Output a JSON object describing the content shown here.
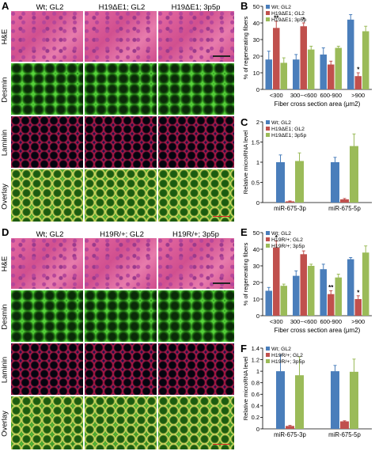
{
  "panels": {
    "A": {
      "label": "A",
      "columns": [
        "Wt; GL2",
        "H19ΔE1; GL2",
        "H19ΔE1; 3p5p"
      ],
      "rows": [
        "H&E",
        "Desmin",
        "Laminin",
        "Overlay"
      ]
    },
    "D": {
      "label": "D",
      "columns": [
        "Wt; GL2",
        "H19R/+; GL2",
        "H19R/+; 3p5p"
      ],
      "rows": [
        "H&E",
        "Desmin",
        "Laminin",
        "Overlay"
      ]
    }
  },
  "colors": {
    "blue": "#4a7ebb",
    "red": "#c0504d",
    "green": "#9bbb59"
  },
  "chart_data": [
    {
      "panel": "B",
      "type": "bar",
      "categories": [
        "<300",
        "300~<600",
        "600-900",
        ">900"
      ],
      "series": [
        {
          "name": "Wt; GL2",
          "values": [
            18,
            18,
            21,
            42
          ],
          "errors": [
            5,
            3,
            4,
            3
          ]
        },
        {
          "name": "H19ΔE1; GL2",
          "values": [
            37,
            38,
            15,
            8
          ],
          "errors": [
            4,
            2,
            2,
            2
          ]
        },
        {
          "name": "H19ΔE1; 3p5p",
          "values": [
            16,
            24,
            25,
            35
          ],
          "errors": [
            3,
            2,
            1,
            3
          ]
        }
      ],
      "annotations": [
        {
          "category": 0,
          "series": 1,
          "text": "**"
        },
        {
          "category": 1,
          "series": 1,
          "text": "*"
        },
        {
          "category": 3,
          "series": 1,
          "text": "*"
        }
      ],
      "ylabel": "% of regenerating fibers",
      "xlabel": "Fiber cross section area (μm2)",
      "ylim": [
        0,
        50
      ],
      "yticks": [
        0,
        10,
        20,
        30,
        40,
        50
      ],
      "legend": "top-left"
    },
    {
      "panel": "C",
      "type": "bar",
      "categories": [
        "miR-675-3p",
        "miR-675-5p"
      ],
      "series": [
        {
          "name": "Wt; GL2",
          "values": [
            1.0,
            1.0
          ],
          "errors": [
            0.18,
            0.12
          ]
        },
        {
          "name": "H19ΔE1; GL2",
          "values": [
            0.03,
            0.08
          ],
          "errors": [
            0.01,
            0.02
          ]
        },
        {
          "name": "H19ΔE1; 3p5p",
          "values": [
            1.03,
            1.4
          ],
          "errors": [
            0.2,
            0.3
          ]
        }
      ],
      "ylabel": "Relative microRNA level",
      "ylim": [
        0,
        2
      ],
      "yticks": [
        0,
        0.5,
        1,
        1.5,
        2
      ],
      "legend": "top-left"
    },
    {
      "panel": "E",
      "type": "bar",
      "categories": [
        "<300",
        "300~<600",
        "600-900",
        ">900"
      ],
      "series": [
        {
          "name": "Wt; GL2",
          "values": [
            15,
            24,
            28,
            34
          ],
          "errors": [
            2,
            3,
            3,
            1
          ]
        },
        {
          "name": "H19R/+; GL2",
          "values": [
            41,
            37,
            13,
            10
          ],
          "errors": [
            4,
            2,
            2,
            2
          ]
        },
        {
          "name": "H19R/+; 3p5p",
          "values": [
            18,
            30,
            23,
            38
          ],
          "errors": [
            1,
            1,
            2,
            4
          ]
        }
      ],
      "annotations": [
        {
          "category": 0,
          "series": 1,
          "text": "*"
        },
        {
          "category": 2,
          "series": 1,
          "text": "**"
        },
        {
          "category": 3,
          "series": 1,
          "text": "*"
        }
      ],
      "ylabel": "% of regenerating fibers",
      "xlabel": "Fiber cross section area (μm2)",
      "ylim": [
        0,
        50
      ],
      "yticks": [
        0,
        10,
        20,
        30,
        40,
        50
      ],
      "legend": "top-left"
    },
    {
      "panel": "F",
      "type": "bar",
      "categories": [
        "miR-675-3p",
        "miR-675-5p"
      ],
      "series": [
        {
          "name": "Wt; GL2",
          "values": [
            1.0,
            1.0
          ],
          "errors": [
            0.28,
            0.1
          ]
        },
        {
          "name": "H19R/+; GL2",
          "values": [
            0.05,
            0.13
          ],
          "errors": [
            0.01,
            0.01
          ]
        },
        {
          "name": "H19R/+; 3p5p",
          "values": [
            0.93,
            0.99
          ],
          "errors": [
            0.32,
            0.22
          ]
        }
      ],
      "ylabel": "Relative microRNA level",
      "ylim": [
        0,
        1.4
      ],
      "yticks": [
        0,
        0.2,
        0.4,
        0.6,
        0.8,
        1,
        1.2,
        1.4
      ],
      "legend": "top-left"
    }
  ]
}
